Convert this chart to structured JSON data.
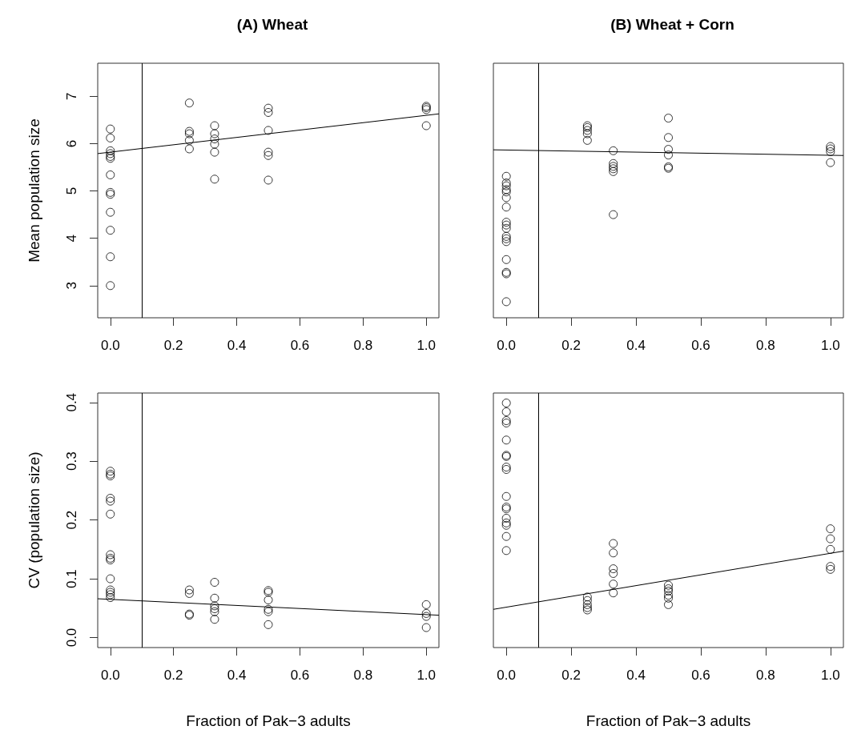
{
  "chart_data": [
    {
      "type": "scatter",
      "title": "(A) Wheat",
      "ylabel": "Mean population size",
      "xlim": [
        -0.04,
        1.04
      ],
      "ylim": [
        2.32,
        7.7
      ],
      "xticks": [
        {
          "value": 0,
          "label": "0.0"
        },
        {
          "value": 0.2,
          "label": "0.2"
        },
        {
          "value": 0.4,
          "label": "0.4"
        },
        {
          "value": 0.6,
          "label": "0.6"
        },
        {
          "value": 0.8,
          "label": "0.8"
        },
        {
          "value": 1,
          "label": "1.0"
        }
      ],
      "yticks": [
        3,
        4,
        5,
        6,
        7
      ],
      "grid": false,
      "ref_lines": [
        {
          "axis": "x",
          "value": 0.1,
          "color": "#000000"
        }
      ],
      "series": [
        {
          "marker": "circle",
          "color": "#000000",
          "x": [
            0,
            0,
            0,
            0,
            0,
            0,
            0,
            0,
            0,
            0,
            0,
            0,
            0,
            0.25,
            0.25,
            0.25,
            0.25,
            0.25,
            0.33,
            0.33,
            0.33,
            0.33,
            0.33,
            0.33,
            0.5,
            0.5,
            0.5,
            0.5,
            0.5,
            0.5,
            1,
            1,
            1,
            1
          ],
          "values": [
            6.31,
            6.12,
            5.85,
            5.79,
            5.73,
            5.69,
            5.34,
            4.97,
            4.93,
            4.55,
            4.17,
            3.61,
            3.0,
            6.86,
            6.26,
            6.21,
            6.07,
            5.89,
            6.38,
            6.21,
            6.1,
            5.99,
            5.82,
            5.25,
            6.75,
            6.66,
            6.28,
            5.82,
            5.75,
            5.23,
            6.79,
            6.76,
            6.72,
            6.38
          ]
        },
        {
          "type": "line",
          "marker": "none",
          "color": "#000000",
          "x": [
            -0.04,
            1.04
          ],
          "values": [
            5.79,
            6.63
          ]
        }
      ]
    },
    {
      "type": "scatter",
      "title": "(B) Wheat + Corn",
      "xlim": [
        -0.04,
        1.04
      ],
      "ylim": [
        2.32,
        7.7
      ],
      "xticks": [
        {
          "value": 0,
          "label": "0.0"
        },
        {
          "value": 0.2,
          "label": "0.2"
        },
        {
          "value": 0.4,
          "label": "0.4"
        },
        {
          "value": 0.6,
          "label": "0.6"
        },
        {
          "value": 0.8,
          "label": "0.8"
        },
        {
          "value": 1,
          "label": "1.0"
        }
      ],
      "tick_labels": "x",
      "grid": false,
      "ref_lines": [
        {
          "axis": "x",
          "value": 0.1,
          "color": "#000000"
        }
      ],
      "series": [
        {
          "marker": "circle",
          "color": "#000000",
          "x": [
            0,
            0,
            0,
            0,
            0,
            0,
            0,
            0,
            0,
            0,
            0,
            0,
            0,
            0,
            0,
            0,
            0,
            0.25,
            0.25,
            0.25,
            0.25,
            0.25,
            0.33,
            0.33,
            0.33,
            0.33,
            0.33,
            0.33,
            0.5,
            0.5,
            0.5,
            0.5,
            0.5,
            0.5,
            1,
            1,
            1,
            1
          ],
          "values": [
            5.31,
            5.17,
            5.11,
            5.03,
            4.98,
            4.86,
            4.66,
            4.34,
            4.28,
            4.21,
            4.04,
            3.99,
            3.93,
            3.55,
            3.28,
            3.25,
            2.66,
            6.38,
            6.34,
            6.28,
            6.21,
            6.07,
            5.85,
            5.58,
            5.52,
            5.47,
            5.41,
            4.5,
            6.54,
            6.13,
            5.88,
            5.76,
            5.51,
            5.48,
            5.94,
            5.89,
            5.83,
            5.6
          ]
        },
        {
          "type": "line",
          "marker": "none",
          "color": "#000000",
          "x": [
            -0.04,
            1.04
          ],
          "values": [
            5.87,
            5.75
          ]
        }
      ]
    },
    {
      "type": "scatter",
      "xlabel": "Fraction of Pak−3 adults",
      "ylabel": "CV (population size)",
      "xlim": [
        -0.04,
        1.04
      ],
      "ylim": [
        -0.017,
        0.416
      ],
      "xticks": [
        {
          "value": 0,
          "label": "0.0"
        },
        {
          "value": 0.2,
          "label": "0.2"
        },
        {
          "value": 0.4,
          "label": "0.4"
        },
        {
          "value": 0.6,
          "label": "0.6"
        },
        {
          "value": 0.8,
          "label": "0.8"
        },
        {
          "value": 1,
          "label": "1.0"
        }
      ],
      "yticks": [
        {
          "value": 0,
          "label": "0.0"
        },
        0.1,
        0.2,
        0.3,
        0.4
      ],
      "grid": false,
      "ref_lines": [
        {
          "axis": "x",
          "value": 0.1,
          "color": "#000000"
        }
      ],
      "series": [
        {
          "marker": "circle",
          "color": "#000000",
          "x": [
            0,
            0,
            0,
            0,
            0,
            0,
            0,
            0,
            0,
            0,
            0,
            0,
            0,
            0,
            0.25,
            0.25,
            0.25,
            0.25,
            0.33,
            0.33,
            0.33,
            0.33,
            0.33,
            0.33,
            0.5,
            0.5,
            0.5,
            0.5,
            0.5,
            0.5,
            1,
            1,
            1,
            1
          ],
          "values": [
            0.283,
            0.278,
            0.275,
            0.237,
            0.232,
            0.21,
            0.141,
            0.135,
            0.132,
            0.1,
            0.081,
            0.077,
            0.073,
            0.068,
            0.081,
            0.075,
            0.04,
            0.038,
            0.094,
            0.067,
            0.054,
            0.049,
            0.044,
            0.031,
            0.08,
            0.077,
            0.064,
            0.048,
            0.044,
            0.022,
            0.056,
            0.041,
            0.036,
            0.017
          ]
        },
        {
          "type": "line",
          "marker": "none",
          "color": "#000000",
          "x": [
            -0.04,
            1.04
          ],
          "values": [
            0.066,
            0.038
          ]
        }
      ]
    },
    {
      "type": "scatter",
      "xlabel": "Fraction of Pak−3 adults",
      "xlim": [
        -0.04,
        1.04
      ],
      "ylim": [
        -0.017,
        0.416
      ],
      "xticks": [
        {
          "value": 0,
          "label": "0.0"
        },
        {
          "value": 0.2,
          "label": "0.2"
        },
        {
          "value": 0.4,
          "label": "0.4"
        },
        {
          "value": 0.6,
          "label": "0.6"
        },
        {
          "value": 0.8,
          "label": "0.8"
        },
        {
          "value": 1,
          "label": "1.0"
        }
      ],
      "tick_labels": "x",
      "grid": false,
      "ref_lines": [
        {
          "axis": "x",
          "value": 0.1,
          "color": "#000000"
        }
      ],
      "series": [
        {
          "marker": "circle",
          "color": "#000000",
          "x": [
            0,
            0,
            0,
            0,
            0,
            0,
            0,
            0,
            0,
            0,
            0,
            0,
            0,
            0,
            0,
            0,
            0,
            0.25,
            0.25,
            0.25,
            0.25,
            0.25,
            0.33,
            0.33,
            0.33,
            0.33,
            0.33,
            0.33,
            0.5,
            0.5,
            0.5,
            0.5,
            0.5,
            0.5,
            1,
            1,
            1,
            1,
            1
          ],
          "values": [
            0.399,
            0.384,
            0.369,
            0.365,
            0.336,
            0.31,
            0.308,
            0.29,
            0.286,
            0.24,
            0.222,
            0.219,
            0.203,
            0.195,
            0.191,
            0.172,
            0.148,
            0.069,
            0.063,
            0.056,
            0.051,
            0.047,
            0.16,
            0.144,
            0.117,
            0.109,
            0.091,
            0.076,
            0.089,
            0.083,
            0.079,
            0.072,
            0.067,
            0.056,
            0.185,
            0.168,
            0.15,
            0.121,
            0.116
          ]
        },
        {
          "type": "line",
          "marker": "none",
          "color": "#000000",
          "x": [
            -0.04,
            1.04
          ],
          "values": [
            0.048,
            0.147
          ]
        }
      ]
    }
  ]
}
